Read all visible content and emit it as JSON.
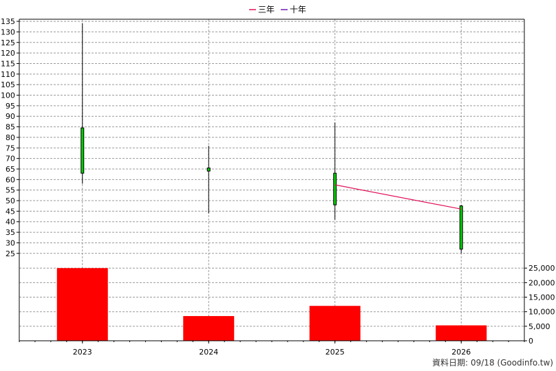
{
  "legend": [
    {
      "label": "三年",
      "color": "#e0105a"
    },
    {
      "label": "十年",
      "color": "#6a1bb5"
    }
  ],
  "credit": "資料日期: 09/18  (Goodinfo.tw)",
  "colors": {
    "candle_up": "#00cc00",
    "volume_bar": "#ff0000",
    "grid": "#999999",
    "wick": "#000000"
  },
  "chart_data": {
    "type": "candlestick",
    "categories": [
      "2023",
      "2024",
      "2025",
      "2026"
    ],
    "price_axis": {
      "ylim": [
        22,
        136
      ],
      "ticks": [
        25,
        30,
        35,
        40,
        45,
        50,
        55,
        60,
        65,
        70,
        75,
        80,
        85,
        90,
        95,
        100,
        105,
        110,
        115,
        120,
        125,
        130,
        135
      ]
    },
    "volume_axis": {
      "ylim": [
        0,
        26000
      ],
      "ticks": [
        0,
        5000,
        10000,
        15000,
        20000,
        25000
      ],
      "tick_labels": [
        "0",
        "5,000",
        "10,000",
        "15,000",
        "20,000",
        "25,000"
      ]
    },
    "ohlc": [
      {
        "x": "2023",
        "open": 63,
        "high": 134,
        "low": 58,
        "close": 84.5
      },
      {
        "x": "2024",
        "open": 64,
        "high": 76,
        "low": 44,
        "close": 65.5
      },
      {
        "x": "2025",
        "open": 48,
        "high": 87,
        "low": 41,
        "close": 63
      },
      {
        "x": "2026",
        "open": 27,
        "high": 48,
        "low": 25,
        "close": 47.5
      }
    ],
    "volume": [
      25000,
      8500,
      12000,
      5300
    ],
    "series": [
      {
        "name": "三年",
        "points": [
          {
            "x": "2025",
            "y": 57.5
          },
          {
            "x": "2026",
            "y": 46
          }
        ]
      }
    ]
  }
}
